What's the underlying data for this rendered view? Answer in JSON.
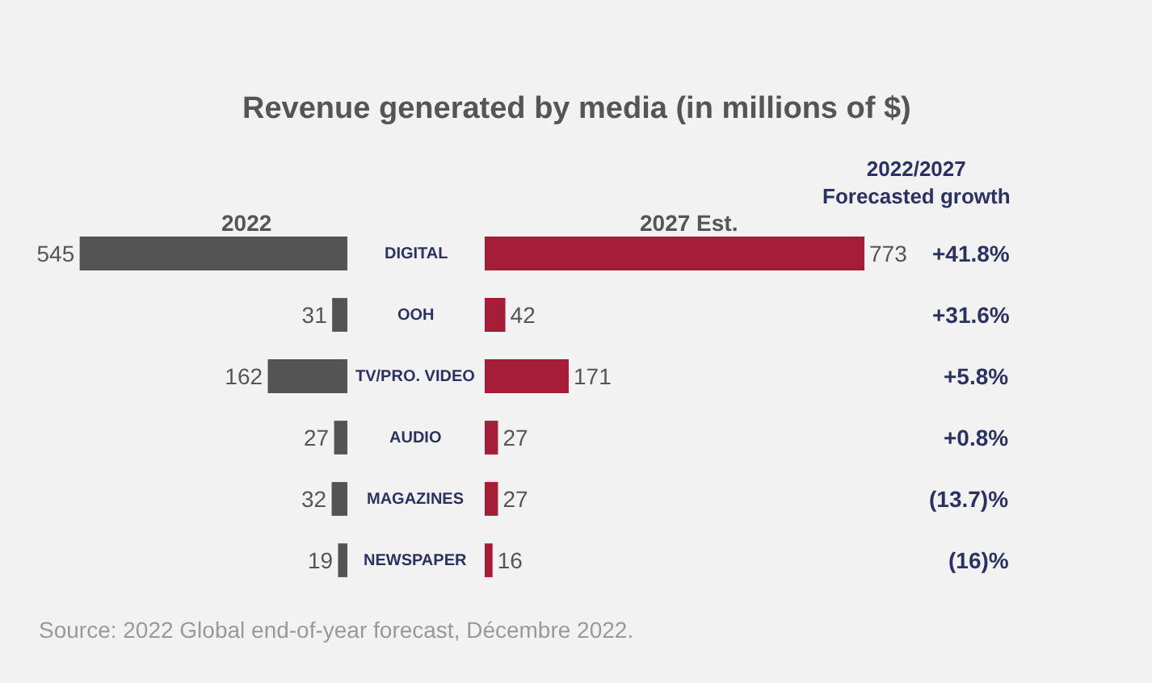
{
  "chart_data": [
    {
      "type": "bar",
      "orientation": "horizontal",
      "title": "Revenue generated by media (in millions of $)",
      "categories": [
        "DIGITAL",
        "OOH",
        "TV/PRO. VIDEO",
        "AUDIO",
        "MAGAZINES",
        "NEWSPAPER"
      ],
      "series": [
        {
          "name": "2022",
          "color": "#545454",
          "values": [
            545,
            31,
            162,
            27,
            32,
            19
          ]
        }
      ],
      "data_labels": true,
      "annotations": [
        "Source: 2022 Global end-of-year forecast, Décembre 2022."
      ]
    },
    {
      "type": "bar",
      "orientation": "horizontal",
      "categories": [
        null,
        null,
        null,
        null,
        null,
        null
      ],
      "series": [
        {
          "name": "2027 Est.",
          "color": "#a51d36",
          "values": [
            773,
            42,
            171,
            27,
            27,
            16
          ]
        }
      ],
      "data_labels": true,
      "annotations": [
        "2022/2027\nForecasted growth",
        "+41.8%",
        "+31.6%",
        "+5.8%",
        "+0.8%",
        "(13.7)%",
        "(16)%"
      ]
    }
  ]
}
